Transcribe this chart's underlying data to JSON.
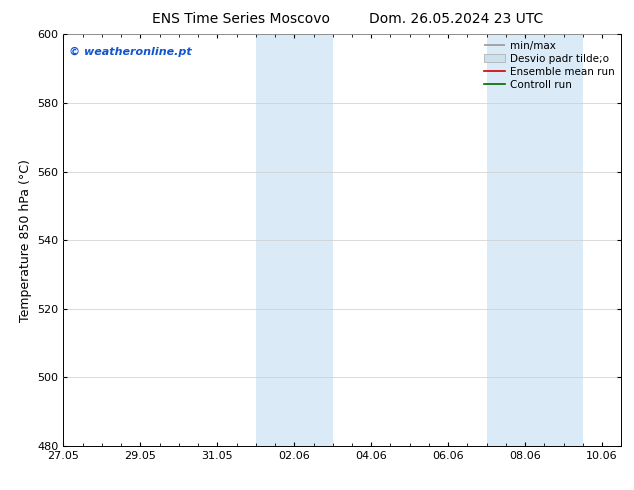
{
  "title_left": "ENS Time Series Moscovo",
  "title_right": "Dom. 26.05.2024 23 UTC",
  "ylabel": "Temperature 850 hPa (°C)",
  "ylim": [
    480,
    600
  ],
  "yticks": [
    480,
    500,
    520,
    540,
    560,
    580,
    600
  ],
  "xtick_labels": [
    "27.05",
    "29.05",
    "31.05",
    "02.06",
    "04.06",
    "06.06",
    "08.06",
    "10.06"
  ],
  "xtick_positions": [
    0,
    2,
    4,
    6,
    8,
    10,
    12,
    14
  ],
  "xlim": [
    0,
    14
  ],
  "shaded_bands": [
    {
      "x_start": 5.0,
      "x_end": 7.0,
      "color": "#daeaf7"
    },
    {
      "x_start": 11.0,
      "x_end": 13.5,
      "color": "#daeaf7"
    }
  ],
  "watermark_text": "© weatheronline.pt",
  "watermark_color": "#1155cc",
  "legend_labels": [
    "min/max",
    "Desvio padr tilde;o",
    "Ensemble mean run",
    "Controll run"
  ],
  "legend_colors": [
    "#999999",
    "#cce0ee",
    "#cc0000",
    "#006600"
  ],
  "bg_color": "#ffffff",
  "grid_color": "#cccccc",
  "tick_label_fontsize": 8,
  "ylabel_fontsize": 9,
  "title_fontsize": 10,
  "watermark_fontsize": 8,
  "legend_fontsize": 7.5
}
